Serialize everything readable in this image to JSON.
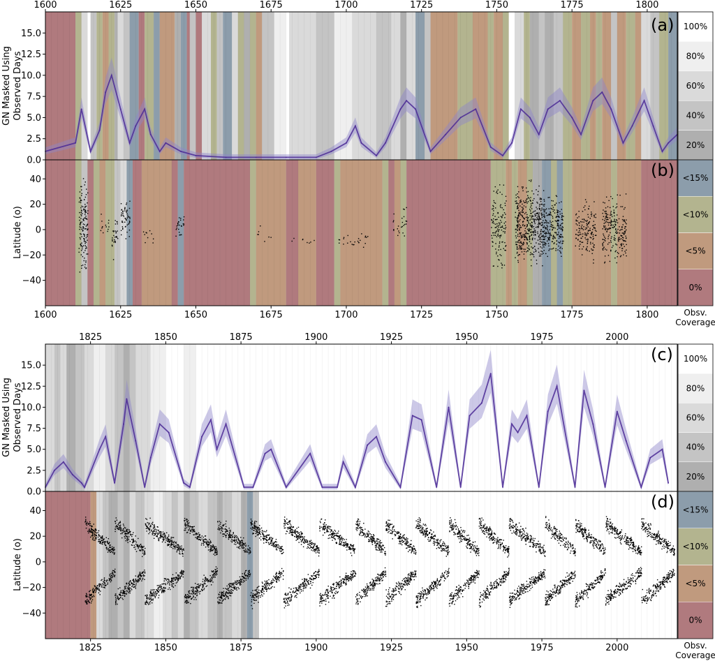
{
  "chart_data": [
    {
      "panel": "a",
      "type": "area",
      "panel_label": "(a)",
      "ylabel": [
        "GN Masked Using",
        "Observed Days"
      ],
      "xlim": [
        1600,
        1810
      ],
      "ylim": [
        0,
        17.5
      ],
      "x_ticks": [
        1600,
        1625,
        1650,
        1675,
        1700,
        1725,
        1750,
        1775,
        1800
      ],
      "x_tick_labels": [
        "1600",
        "1625",
        "1650",
        "1675",
        "1700",
        "1725",
        "1750",
        "1775",
        "1800"
      ],
      "y_ticks": [
        0.0,
        2.5,
        5.0,
        7.5,
        10.0,
        12.5,
        15.0
      ],
      "y_tick_labels": [
        "0.0",
        "2.5",
        "5.0",
        "7.5",
        "10.0",
        "12.5",
        "15.0"
      ],
      "coverage_legend": [
        "100%",
        "80%",
        "60%",
        "40%",
        "20%"
      ],
      "series": [
        {
          "x": [
            1600,
            1610,
            1612,
            1615,
            1618,
            1620,
            1622,
            1625,
            1628,
            1630,
            1633,
            1635,
            1638,
            1640,
            1645,
            1650,
            1660,
            1670,
            1680,
            1690,
            1695,
            1700,
            1703,
            1705,
            1710,
            1713,
            1718,
            1720,
            1723,
            1728,
            1733,
            1738,
            1743,
            1748,
            1752,
            1755,
            1758,
            1761,
            1764,
            1767,
            1771,
            1775,
            1778,
            1782,
            1785,
            1788,
            1792,
            1795,
            1799,
            1802,
            1805,
            1807,
            1810
          ],
          "y": [
            1.0,
            2.0,
            6.0,
            1.0,
            3.5,
            8.0,
            10.0,
            6.0,
            2.0,
            4.0,
            6.0,
            3.0,
            1.0,
            2.0,
            1.0,
            0.5,
            0.3,
            0.3,
            0.3,
            0.3,
            1.0,
            2.0,
            4.0,
            2.0,
            0.5,
            2.0,
            6.0,
            7.0,
            6.0,
            1.0,
            3.0,
            5.0,
            6.0,
            1.5,
            0.5,
            2.0,
            6.0,
            5.0,
            3.0,
            6.0,
            7.0,
            5.0,
            3.0,
            7.0,
            8.0,
            6.0,
            2.0,
            4.0,
            7.0,
            4.0,
            1.0,
            2.0,
            3.0
          ]
        }
      ]
    },
    {
      "panel": "b",
      "type": "scatter",
      "panel_label": "(b)",
      "ylabel": "Latitude (o)",
      "xlim": [
        1600,
        1810
      ],
      "ylim": [
        -60,
        55
      ],
      "x_ticks": [
        1600,
        1625,
        1650,
        1675,
        1700,
        1725,
        1750,
        1775,
        1800
      ],
      "x_tick_labels": [
        "1600",
        "1625",
        "1650",
        "1675",
        "1700",
        "1725",
        "1750",
        "1775",
        "1800"
      ],
      "y_ticks": [
        40,
        20,
        0,
        -20,
        -40
      ],
      "y_tick_labels": [
        "40",
        "20",
        "0",
        "−20",
        "−40"
      ],
      "coverage_legend": [
        "<15%",
        "<10%",
        "<5%",
        "0%"
      ],
      "coverage_legend_title": [
        "Obsv.",
        "Coverage"
      ],
      "spot_clusters": [
        {
          "x": [
            1611,
            1614
          ],
          "lat": [
            -45,
            50
          ],
          "density": 2.0
        },
        {
          "x": [
            1618,
            1621
          ],
          "lat": [
            -15,
            18
          ],
          "density": 0.4
        },
        {
          "x": [
            1622,
            1624
          ],
          "lat": [
            -28,
            20
          ],
          "density": 1.0
        },
        {
          "x": [
            1625,
            1628
          ],
          "lat": [
            -10,
            30
          ],
          "density": 1.6
        },
        {
          "x": [
            1632,
            1636
          ],
          "lat": [
            -15,
            5
          ],
          "density": 0.3
        },
        {
          "x": [
            1643,
            1646
          ],
          "lat": [
            -10,
            17
          ],
          "density": 1.0
        },
        {
          "x": [
            1670,
            1675
          ],
          "lat": [
            -10,
            5
          ],
          "density": 0.15
        },
        {
          "x": [
            1680,
            1690
          ],
          "lat": [
            -12,
            -4
          ],
          "density": 0.2
        },
        {
          "x": [
            1697,
            1708
          ],
          "lat": [
            -15,
            0
          ],
          "density": 0.5
        },
        {
          "x": [
            1715,
            1720
          ],
          "lat": [
            -15,
            25
          ],
          "density": 0.4
        },
        {
          "x": [
            1748,
            1753
          ],
          "lat": [
            -40,
            45
          ],
          "density": 1.2
        },
        {
          "x": [
            1756,
            1766
          ],
          "lat": [
            -40,
            45
          ],
          "density": 2.2
        },
        {
          "x": [
            1766,
            1772
          ],
          "lat": [
            -30,
            35
          ],
          "density": 2.0
        },
        {
          "x": [
            1776,
            1783
          ],
          "lat": [
            -30,
            30
          ],
          "density": 1.4
        },
        {
          "x": [
            1785,
            1793
          ],
          "lat": [
            -35,
            35
          ],
          "density": 1.6
        }
      ]
    },
    {
      "panel": "c",
      "type": "area",
      "panel_label": "(c)",
      "ylabel": [
        "GN Masked Using",
        "Observed Days"
      ],
      "xlim": [
        1810,
        2020
      ],
      "ylim": [
        0,
        17.5
      ],
      "x_ticks": [
        1825,
        1850,
        1875,
        1900,
        1925,
        1950,
        1975,
        2000
      ],
      "x_tick_labels": [
        "1825",
        "1850",
        "1875",
        "1900",
        "1925",
        "1950",
        "1975",
        "2000"
      ],
      "y_ticks": [
        0.0,
        2.5,
        5.0,
        7.5,
        10.0,
        12.5,
        15.0
      ],
      "y_tick_labels": [
        "0.0",
        "2.5",
        "5.0",
        "7.5",
        "10.0",
        "12.5",
        "15.0"
      ],
      "coverage_legend": [
        "100%",
        "80%",
        "60%",
        "40%",
        "20%"
      ],
      "series": [
        {
          "x": [
            1810,
            1813,
            1816,
            1819,
            1822,
            1823,
            1828,
            1830,
            1833,
            1836,
            1837,
            1840,
            1843,
            1845,
            1848,
            1851,
            1856,
            1858,
            1862,
            1865,
            1867,
            1870,
            1876,
            1879,
            1883,
            1885,
            1890,
            1898,
            1902,
            1907,
            1909,
            1913,
            1917,
            1920,
            1923,
            1928,
            1932,
            1935,
            1940,
            1944,
            1948,
            1951,
            1955,
            1958,
            1962,
            1965,
            1967,
            1970,
            1974,
            1977,
            1980,
            1986,
            1989,
            1992,
            1996,
            2000,
            2003,
            2008,
            2011,
            2015,
            2017
          ],
          "y": [
            0.5,
            2.5,
            3.5,
            2.0,
            1.0,
            0.5,
            5.0,
            6.5,
            1.0,
            8.0,
            11.0,
            6.0,
            0.5,
            4.0,
            8.0,
            7.0,
            1.0,
            0.5,
            6.5,
            8.5,
            5.0,
            8.0,
            0.5,
            0.5,
            4.5,
            5.0,
            0.5,
            4.5,
            0.5,
            0.5,
            3.5,
            0.5,
            5.5,
            6.5,
            3.5,
            0.5,
            9.0,
            8.5,
            0.5,
            10.0,
            0.5,
            9.0,
            10.5,
            14.0,
            0.5,
            8.0,
            7.0,
            9.0,
            0.5,
            9.5,
            12.5,
            0.5,
            12.0,
            8.0,
            0.5,
            9.5,
            6.0,
            0.5,
            4.0,
            5.0,
            1.0
          ]
        }
      ]
    },
    {
      "panel": "d",
      "type": "scatter",
      "panel_label": "(d)",
      "ylabel": "Latitude (o)",
      "xlim": [
        1810,
        2020
      ],
      "ylim": [
        -60,
        55
      ],
      "x_ticks": [
        1825,
        1850,
        1875,
        1900,
        1925,
        1950,
        1975,
        2000
      ],
      "x_tick_labels": [
        "1825",
        "1850",
        "1875",
        "1900",
        "1925",
        "1950",
        "1975",
        "2000"
      ],
      "y_ticks": [
        40,
        20,
        0,
        -20,
        -40
      ],
      "y_tick_labels": [
        "40",
        "20",
        "0",
        "−20",
        "−40"
      ],
      "coverage_legend": [
        "<15%",
        "<10%",
        "<5%",
        "0%"
      ],
      "coverage_legend_title": [
        "Obsv.",
        "Coverage"
      ],
      "butterfly_cycles": [
        {
          "start": 1823,
          "end": 1833
        },
        {
          "start": 1833,
          "end": 1843
        },
        {
          "start": 1843,
          "end": 1856
        },
        {
          "start": 1856,
          "end": 1867
        },
        {
          "start": 1867,
          "end": 1878
        },
        {
          "start": 1878,
          "end": 1889
        },
        {
          "start": 1889,
          "end": 1901
        },
        {
          "start": 1901,
          "end": 1913
        },
        {
          "start": 1913,
          "end": 1923
        },
        {
          "start": 1923,
          "end": 1933
        },
        {
          "start": 1933,
          "end": 1944
        },
        {
          "start": 1944,
          "end": 1954
        },
        {
          "start": 1954,
          "end": 1964
        },
        {
          "start": 1964,
          "end": 1976
        },
        {
          "start": 1976,
          "end": 1986
        },
        {
          "start": 1986,
          "end": 1996
        },
        {
          "start": 1996,
          "end": 2008
        },
        {
          "start": 2008,
          "end": 2019
        }
      ]
    }
  ],
  "colors": {
    "c0": "#b07a7e",
    "c5": "#c09a7e",
    "c10": "#b3b48f",
    "c15": "#8c9dab",
    "ink": "#4b2a95",
    "band": "#8f84c9"
  }
}
